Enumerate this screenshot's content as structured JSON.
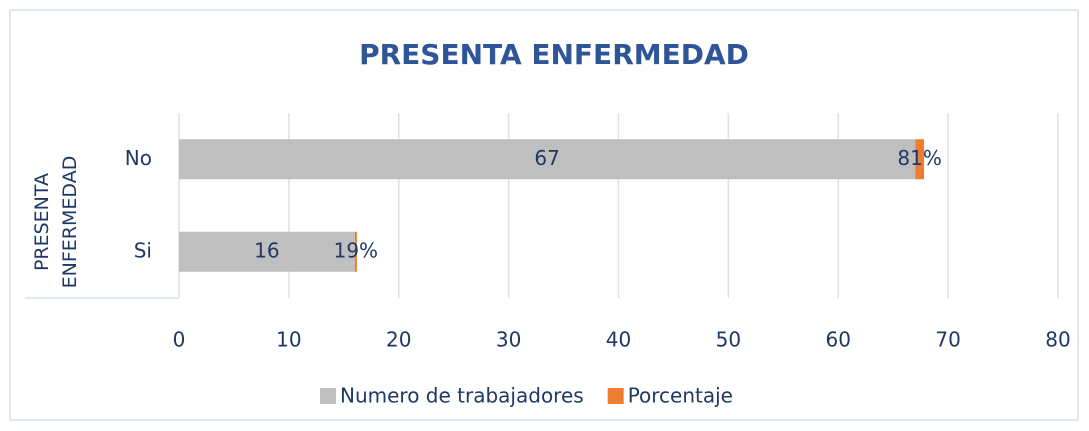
{
  "chart_data": {
    "type": "bar",
    "orientation": "horizontal",
    "stacked": true,
    "title": "PRESENTA ENFERMEDAD",
    "y_label": "PRESENTA ENFERMEDAD",
    "categories": [
      "No",
      "Si"
    ],
    "series": [
      {
        "name": "Numero de trabajadores",
        "color": "#bfbfbf",
        "values": [
          67,
          16
        ]
      },
      {
        "name": "Porcentaje",
        "color": "#ed7d31",
        "values": [
          0.81,
          0.19
        ],
        "value_labels": [
          "81%",
          "19%"
        ]
      }
    ],
    "xlim": [
      0,
      80
    ],
    "xticks": [
      0,
      10,
      20,
      30,
      40,
      50,
      60,
      70,
      80
    ],
    "grid": true,
    "legend": "bottom"
  }
}
